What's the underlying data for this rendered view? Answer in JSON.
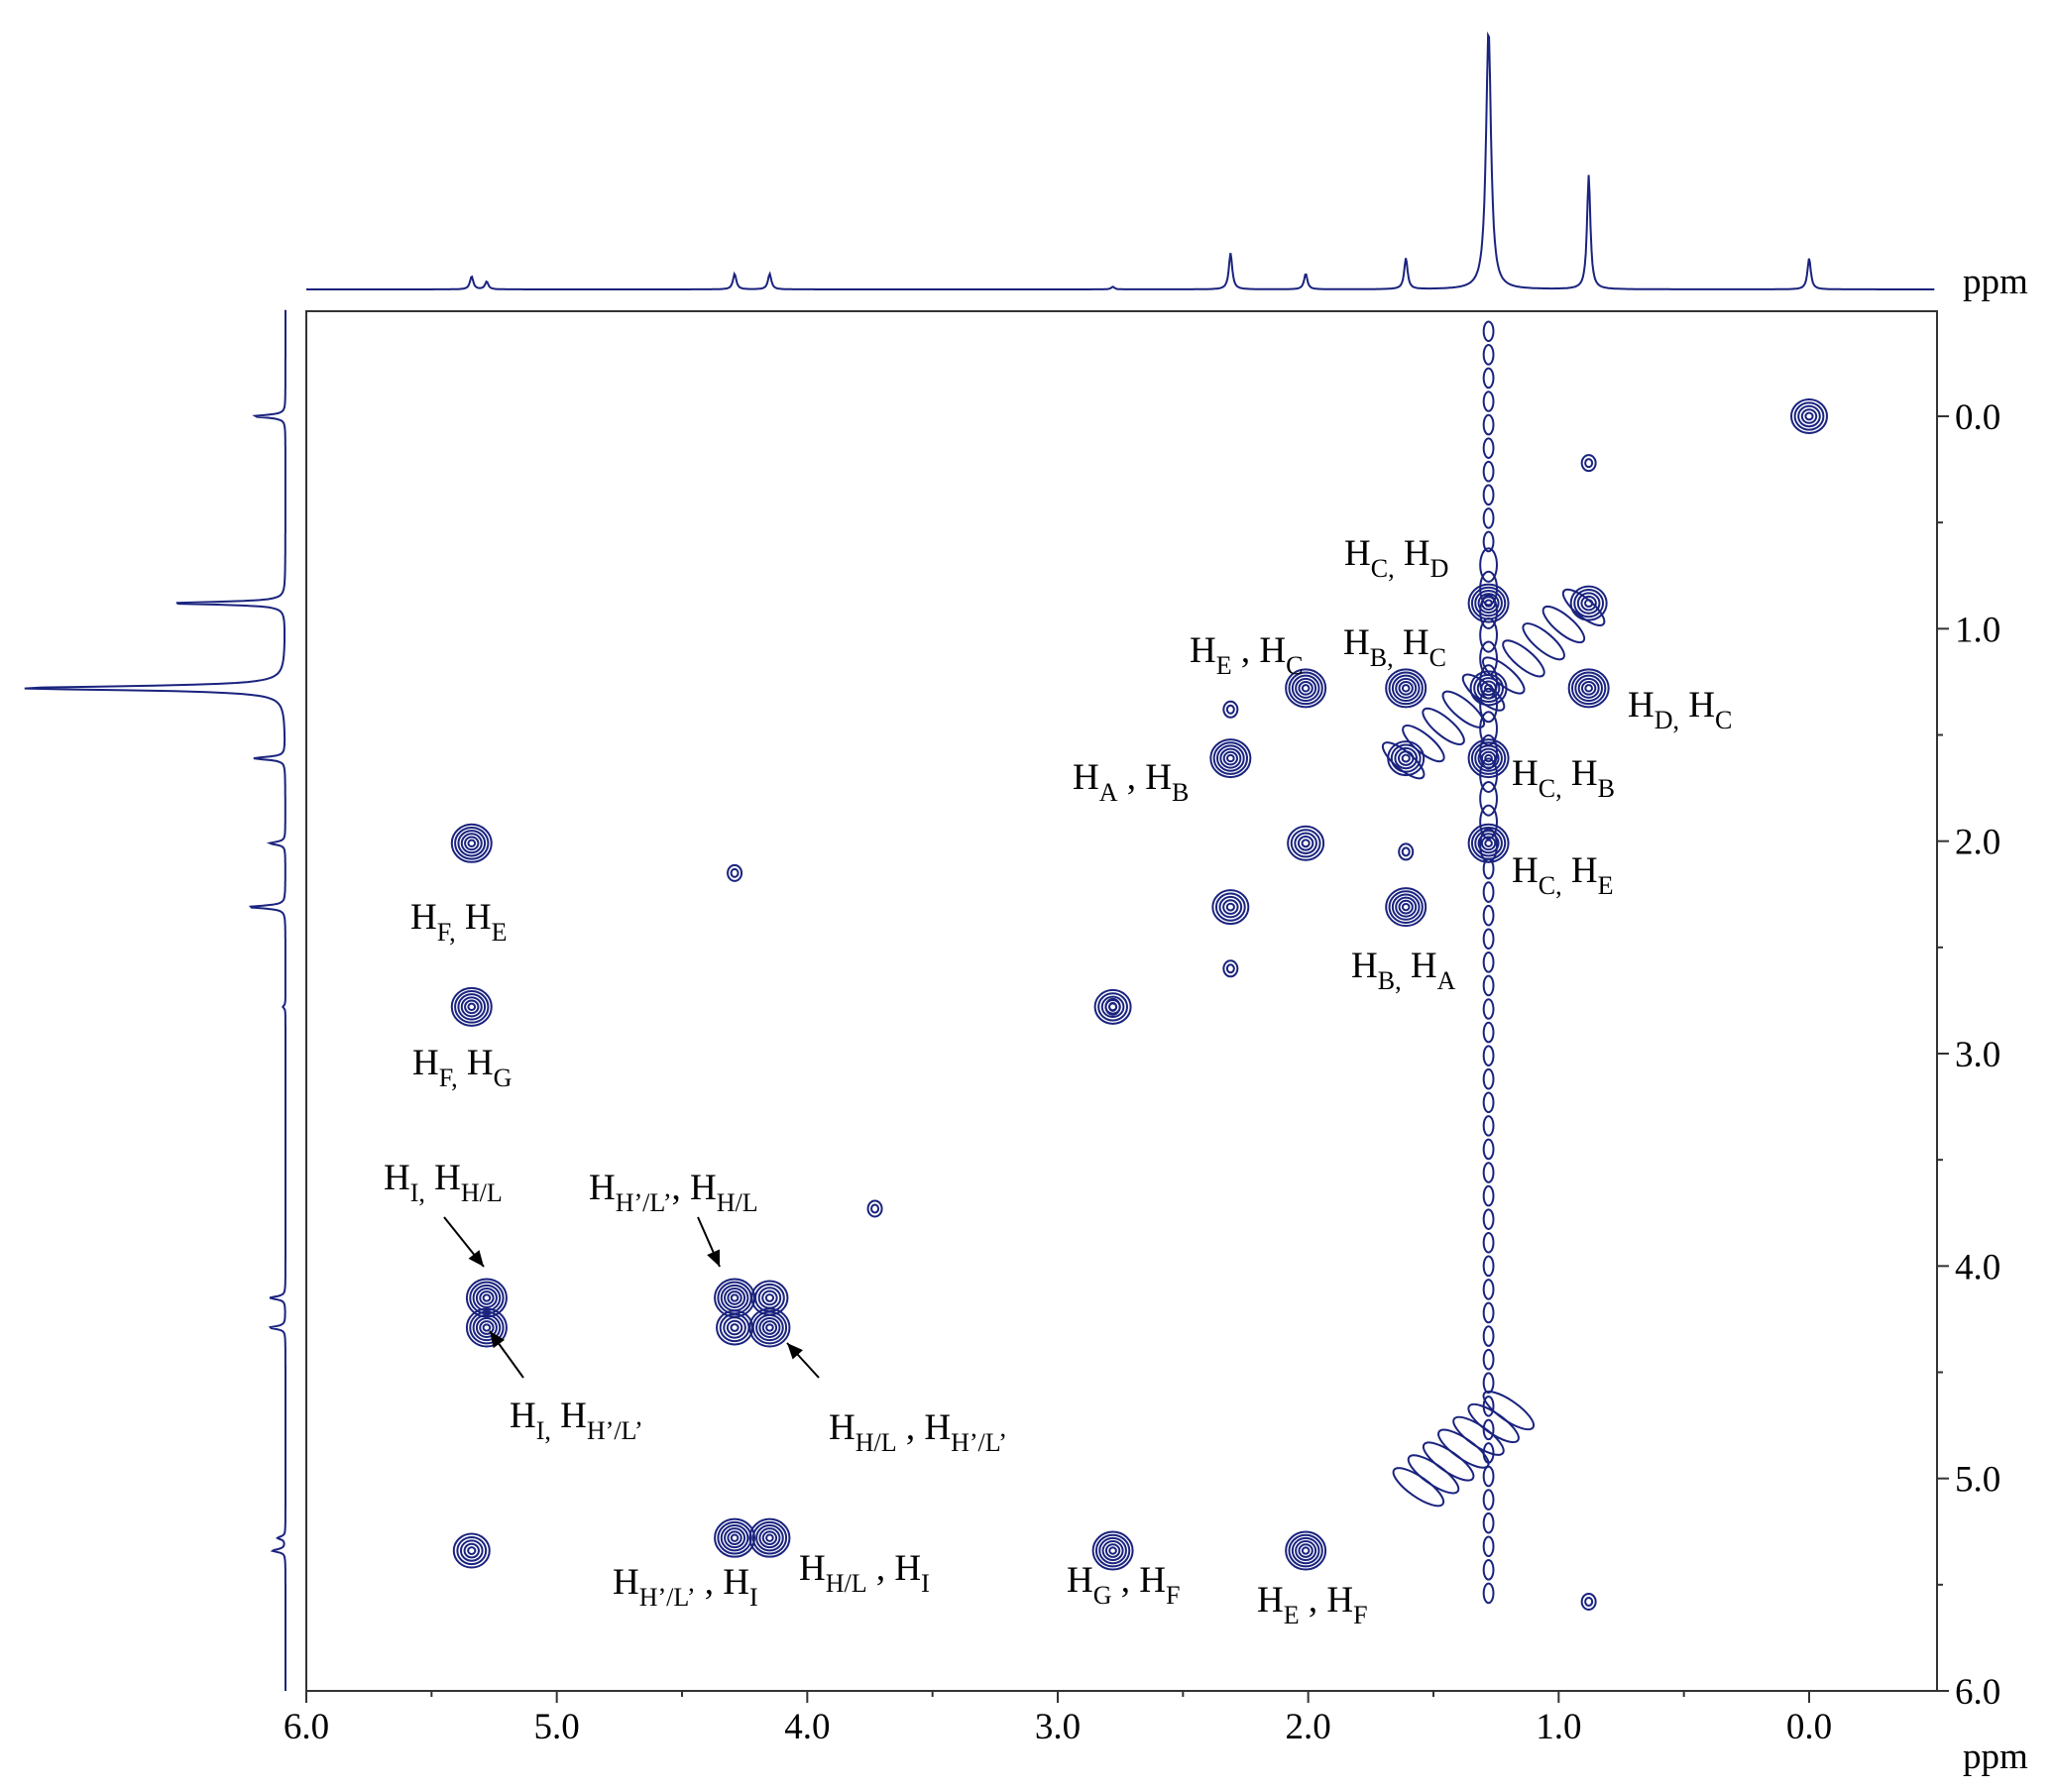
{
  "chart_data": {
    "type": "contour",
    "x_axis": {
      "unit": "ppm",
      "range": [
        6.0,
        -0.5
      ],
      "reversed": true,
      "tick_labels": [
        "6.0",
        "5.0",
        "4.0",
        "3.0",
        "2.0",
        "1.0",
        "0.0"
      ],
      "tick_values": [
        6,
        5,
        4,
        3,
        2,
        1,
        0
      ]
    },
    "y_axis": {
      "unit": "ppm",
      "range": [
        -0.5,
        6.0
      ],
      "side": "right",
      "tick_labels": [
        "0.0",
        "1.0",
        "2.0",
        "3.0",
        "4.0",
        "5.0",
        "6.0"
      ],
      "tick_values": [
        0,
        1,
        2,
        3,
        4,
        5,
        6
      ]
    },
    "projection_1d": {
      "peaks": [
        {
          "ppm": 5.34,
          "height": 0.05
        },
        {
          "ppm": 5.28,
          "height": 0.03
        },
        {
          "ppm": 4.29,
          "height": 0.06
        },
        {
          "ppm": 4.15,
          "height": 0.06
        },
        {
          "ppm": 2.78,
          "height": 0.01
        },
        {
          "ppm": 2.31,
          "height": 0.14
        },
        {
          "ppm": 2.01,
          "height": 0.06
        },
        {
          "ppm": 1.61,
          "height": 0.12
        },
        {
          "ppm": 1.28,
          "height": 1.0
        },
        {
          "ppm": 0.88,
          "height": 0.44
        },
        {
          "ppm": 0.0,
          "height": 0.12
        }
      ]
    },
    "peaks_2d": [
      {
        "x": 0.0,
        "y": 0.0,
        "kind": "diagonal"
      },
      {
        "x": 0.88,
        "y": 0.88,
        "kind": "diagonal"
      },
      {
        "x": 1.28,
        "y": 1.28,
        "kind": "diagonal"
      },
      {
        "x": 1.61,
        "y": 1.61,
        "kind": "diagonal"
      },
      {
        "x": 2.01,
        "y": 2.01,
        "kind": "diagonal"
      },
      {
        "x": 2.31,
        "y": 2.31,
        "kind": "diagonal"
      },
      {
        "x": 2.78,
        "y": 2.78,
        "kind": "diagonal"
      },
      {
        "x": 4.29,
        "y": 4.29,
        "kind": "diagonal"
      },
      {
        "x": 4.15,
        "y": 4.15,
        "kind": "diagonal"
      },
      {
        "x": 5.34,
        "y": 5.34,
        "kind": "diagonal"
      },
      {
        "x": 1.28,
        "y": 0.88,
        "kind": "cross"
      },
      {
        "x": 0.88,
        "y": 1.28,
        "kind": "cross"
      },
      {
        "x": 1.61,
        "y": 1.28,
        "kind": "cross"
      },
      {
        "x": 1.28,
        "y": 1.61,
        "kind": "cross"
      },
      {
        "x": 2.01,
        "y": 1.28,
        "kind": "cross"
      },
      {
        "x": 1.28,
        "y": 2.01,
        "kind": "cross"
      },
      {
        "x": 2.31,
        "y": 1.61,
        "kind": "cross"
      },
      {
        "x": 1.61,
        "y": 2.31,
        "kind": "cross"
      },
      {
        "x": 5.34,
        "y": 2.01,
        "kind": "cross"
      },
      {
        "x": 2.01,
        "y": 5.34,
        "kind": "cross"
      },
      {
        "x": 5.34,
        "y": 2.78,
        "kind": "cross"
      },
      {
        "x": 2.78,
        "y": 5.34,
        "kind": "cross"
      },
      {
        "x": 5.28,
        "y": 4.15,
        "kind": "cross"
      },
      {
        "x": 5.28,
        "y": 4.29,
        "kind": "cross"
      },
      {
        "x": 4.29,
        "y": 5.28,
        "kind": "cross"
      },
      {
        "x": 4.15,
        "y": 5.28,
        "kind": "cross"
      },
      {
        "x": 4.29,
        "y": 4.15,
        "kind": "cross"
      },
      {
        "x": 4.15,
        "y": 4.29,
        "kind": "cross"
      },
      {
        "x": 3.73,
        "y": 3.73,
        "kind": "minor"
      },
      {
        "x": 4.29,
        "y": 2.15,
        "kind": "minor"
      },
      {
        "x": 0.88,
        "y": 0.22,
        "kind": "minor"
      },
      {
        "x": 0.88,
        "y": 5.58,
        "kind": "minor"
      },
      {
        "x": 2.31,
        "y": 1.38,
        "kind": "minor"
      },
      {
        "x": 2.31,
        "y": 2.6,
        "kind": "minor"
      },
      {
        "x": 1.61,
        "y": 2.05,
        "kind": "minor"
      },
      {
        "x": 2.78,
        "y": 2.78,
        "kind": "minor"
      }
    ],
    "annotations": [
      {
        "main": "H",
        "sub1": "C,",
        "mid": " H",
        "sub2": "D"
      },
      {
        "main": "H",
        "sub1": "E",
        "mid": " , H",
        "sub2": "C"
      },
      {
        "main": "H",
        "sub1": "B,",
        "mid": " H",
        "sub2": "C"
      },
      {
        "main": "H",
        "sub1": "D,",
        "mid": " H",
        "sub2": "C"
      },
      {
        "main": "H",
        "sub1": "A",
        "mid": " , H",
        "sub2": "B"
      },
      {
        "main": "H",
        "sub1": "C,",
        "mid": " H",
        "sub2": "B"
      },
      {
        "main": "H",
        "sub1": "C,",
        "mid": " H",
        "sub2": "E"
      },
      {
        "main": "H",
        "sub1": "F,",
        "mid": " H",
        "sub2": "E"
      },
      {
        "main": "H",
        "sub1": "B,",
        "mid": " H",
        "sub2": "A"
      },
      {
        "main": "H",
        "sub1": "F,",
        "mid": " H",
        "sub2": "G"
      },
      {
        "main": "H",
        "sub1": "I,",
        "mid": " H",
        "sub2": "H/L"
      },
      {
        "main": "H",
        "sub1": "H’/L’",
        "mid": ", H",
        "sub2": "H/L"
      },
      {
        "main": "H",
        "sub1": "I,",
        "mid": " H",
        "sub2": "H’/L’"
      },
      {
        "main": "H",
        "sub1": "H/L",
        "mid": " , H",
        "sub2": "H’/L’"
      },
      {
        "main": "H",
        "sub1": "H’/L’",
        "mid": " , H",
        "sub2": "I"
      },
      {
        "main": "H",
        "sub1": "H/L",
        "mid": " , H",
        "sub2": "I"
      },
      {
        "main": "H",
        "sub1": "G",
        "mid": " , H",
        "sub2": "F"
      },
      {
        "main": "H",
        "sub1": "E",
        "mid": " , H",
        "sub2": "F"
      }
    ],
    "colors": {
      "line": "#1a237e",
      "text": "#000000",
      "frame": "#333333"
    }
  }
}
